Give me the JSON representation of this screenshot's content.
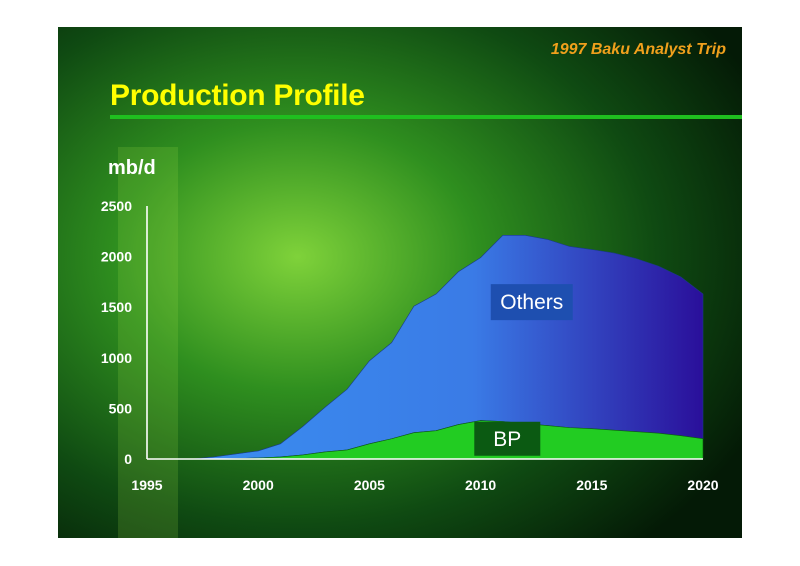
{
  "slide": {
    "subtitle": "1997 Baku Analyst Trip",
    "title": "Production Profile",
    "rule_color": "#1fbf1f",
    "title_color": "#ffff00",
    "subtitle_color": "#f0a01c"
  },
  "chart_data": {
    "type": "area",
    "title": "",
    "ylabel": "mb/d",
    "xlabel": "",
    "xlim": [
      1995,
      2020
    ],
    "ylim": [
      0,
      2500
    ],
    "x_ticks": [
      "1995",
      "2000",
      "2005",
      "2010",
      "2015",
      "2020"
    ],
    "y_ticks": [
      "0",
      "500",
      "1000",
      "1500",
      "2000",
      "2500"
    ],
    "grid": false,
    "stacked": true,
    "x": [
      1997,
      1998,
      1999,
      2000,
      2001,
      2002,
      2003,
      2004,
      2005,
      2006,
      2007,
      2008,
      2009,
      2010,
      2011,
      2012,
      2013,
      2014,
      2015,
      2016,
      2017,
      2018,
      2019,
      2020
    ],
    "series": [
      {
        "name": "BP",
        "color": "#22cc22",
        "values": [
          0,
          0,
          5,
          10,
          20,
          40,
          70,
          90,
          150,
          200,
          260,
          280,
          340,
          380,
          370,
          350,
          330,
          310,
          300,
          285,
          270,
          255,
          230,
          200
        ]
      },
      {
        "name": "Others",
        "color": "#3a8ef0",
        "values": [
          0,
          20,
          45,
          70,
          130,
          280,
          440,
          600,
          820,
          950,
          1250,
          1350,
          1510,
          1610,
          1840,
          1860,
          1840,
          1790,
          1770,
          1750,
          1710,
          1650,
          1570,
          1430
        ]
      }
    ]
  }
}
